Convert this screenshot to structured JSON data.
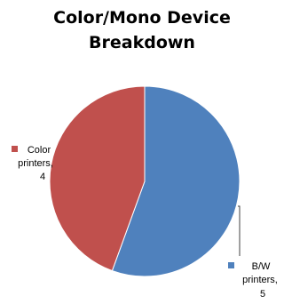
{
  "chart_data": {
    "type": "pie",
    "title_lines": [
      "Color/Mono Device",
      "Breakdown"
    ],
    "slices": [
      {
        "label_lines": [
          "Color",
          "printers,",
          "4"
        ],
        "name": "Color printers",
        "value": 4,
        "color": "#c0504d"
      },
      {
        "label_lines": [
          "B/W",
          "printers,",
          "5"
        ],
        "name": "B/W printers",
        "value": 5,
        "color": "#4f81bd"
      }
    ]
  }
}
